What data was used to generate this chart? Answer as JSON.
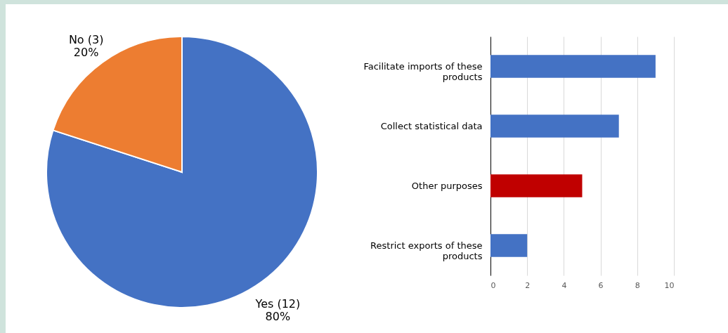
{
  "chart_data": [
    {
      "type": "pie",
      "categories": [
        "Yes (12)",
        "No (3)"
      ],
      "values": [
        80,
        20
      ],
      "colors": [
        "#4472c4",
        "#ed7d31"
      ],
      "value_labels": [
        "80%",
        "20%"
      ]
    },
    {
      "type": "bar",
      "orientation": "horizontal",
      "categories": [
        "Facilitate imports of these products",
        "Collect statistical data",
        "Other purposes",
        "Restrict exports of these products"
      ],
      "values": [
        9,
        7,
        5,
        2
      ],
      "colors": [
        "#4472c4",
        "#4472c4",
        "#c00000",
        "#4472c4"
      ],
      "xlim": [
        0,
        10
      ],
      "xticks": [
        0,
        2,
        4,
        6,
        8,
        10
      ],
      "grid": "x"
    }
  ]
}
